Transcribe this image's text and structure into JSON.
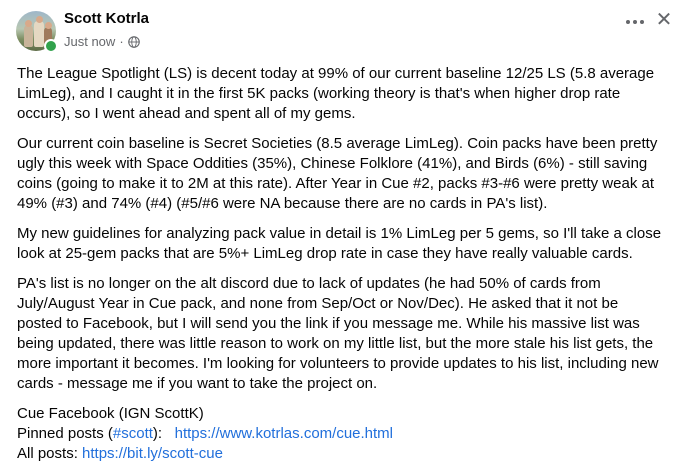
{
  "post": {
    "author": "Scott Kotrla",
    "timestamp": "Just now",
    "separator": "·",
    "privacy_icon": "globe-icon",
    "paragraphs": [
      "The League Spotlight (LS) is decent today at 99% of our current baseline 12/25 LS (5.8 average LimLeg), and I caught it in the first 5K packs (working theory is that's when higher drop rate occurs), so I went ahead and spent all of my gems.",
      "Our current coin baseline is Secret Societies (8.5 average LimLeg).  Coin packs have been pretty ugly this week with Space Oddities (35%), Chinese Folklore (41%), and Birds (6%) - still saving coins (going to make it to 2M at this rate).  After Year in Cue #2, packs #3-#6 were pretty weak at 49% (#3) and 74% (#4) (#5/#6 were NA because there are no cards in PA's list).",
      "My new guidelines for analyzing pack value in detail is 1% LimLeg per 5 gems, so I'll take a close look at 25-gem packs that are 5%+ LimLeg drop rate in case they have really valuable cards.",
      "PA's list is no longer on the alt discord due to lack of updates (he had 50% of cards from July/August Year in Cue pack, and none from Sep/Oct or Nov/Dec).  He asked that it not be posted to Facebook, but I will send you the link if you message me.  While his massive list was being updated, there was little reason to work on my little list, but the more stale his list gets, the more important it becomes.  I'm looking for volunteers to provide updates to his list, including new cards - message me if you want to take the project on."
    ],
    "footer": {
      "cue_facebook": "Cue Facebook (IGN   ScottK)",
      "pinned_label": "Pinned posts (",
      "pinned_hashtag": "#scott",
      "pinned_close": "):",
      "pinned_url": "https://www.kotrlas.com/cue.html",
      "all_label": "All posts: ",
      "all_url": "https://bit.ly/scott-cue"
    }
  },
  "colors": {
    "link": "#216fdb",
    "meta": "#65676b",
    "online": "#31a24c"
  }
}
